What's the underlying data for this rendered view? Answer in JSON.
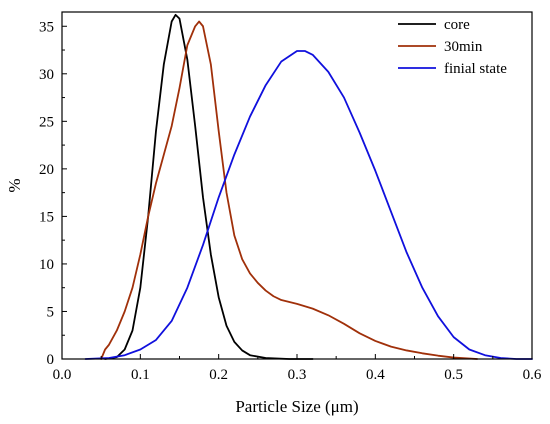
{
  "chart_data": {
    "type": "line",
    "xlabel": "Particle Size (μm)",
    "ylabel": "%",
    "xlim": [
      0.0,
      0.6
    ],
    "ylim": [
      0,
      36.5
    ],
    "x_ticks": [
      0.0,
      0.1,
      0.2,
      0.3,
      0.4,
      0.5,
      0.6
    ],
    "x_tick_labels": [
      "0.0",
      "0.1",
      "0.2",
      "0.3",
      "0.4",
      "0.5",
      "0.6"
    ],
    "y_ticks": [
      0,
      5,
      10,
      15,
      20,
      25,
      30,
      35
    ],
    "y_tick_labels": [
      "0",
      "5",
      "10",
      "15",
      "20",
      "25",
      "30",
      "35"
    ],
    "grid": false,
    "legend_position": "top-right",
    "series": [
      {
        "name": "core",
        "color": "#000000",
        "points": [
          [
            0.055,
            0.0
          ],
          [
            0.07,
            0.2
          ],
          [
            0.08,
            1.0
          ],
          [
            0.09,
            3.0
          ],
          [
            0.1,
            7.5
          ],
          [
            0.11,
            15.0
          ],
          [
            0.12,
            24.0
          ],
          [
            0.13,
            31.0
          ],
          [
            0.14,
            35.5
          ],
          [
            0.145,
            36.2
          ],
          [
            0.15,
            35.8
          ],
          [
            0.16,
            31.5
          ],
          [
            0.17,
            24.5
          ],
          [
            0.18,
            17.0
          ],
          [
            0.19,
            11.0
          ],
          [
            0.2,
            6.5
          ],
          [
            0.21,
            3.5
          ],
          [
            0.22,
            1.8
          ],
          [
            0.23,
            0.9
          ],
          [
            0.24,
            0.4
          ],
          [
            0.26,
            0.1
          ],
          [
            0.29,
            0.0
          ],
          [
            0.32,
            0.0
          ]
        ]
      },
      {
        "name": "30min",
        "color": "#a0300a",
        "points": [
          [
            0.05,
            0.0
          ],
          [
            0.055,
            1.0
          ],
          [
            0.06,
            1.5
          ],
          [
            0.07,
            3.0
          ],
          [
            0.08,
            5.0
          ],
          [
            0.09,
            7.5
          ],
          [
            0.1,
            11.0
          ],
          [
            0.11,
            15.0
          ],
          [
            0.12,
            18.5
          ],
          [
            0.13,
            21.5
          ],
          [
            0.14,
            24.5
          ],
          [
            0.15,
            28.5
          ],
          [
            0.16,
            33.0
          ],
          [
            0.17,
            35.0
          ],
          [
            0.175,
            35.5
          ],
          [
            0.18,
            35.0
          ],
          [
            0.19,
            31.0
          ],
          [
            0.2,
            24.0
          ],
          [
            0.21,
            17.5
          ],
          [
            0.22,
            13.0
          ],
          [
            0.23,
            10.5
          ],
          [
            0.24,
            9.0
          ],
          [
            0.25,
            8.0
          ],
          [
            0.26,
            7.2
          ],
          [
            0.27,
            6.6
          ],
          [
            0.28,
            6.2
          ],
          [
            0.3,
            5.8
          ],
          [
            0.32,
            5.3
          ],
          [
            0.34,
            4.6
          ],
          [
            0.36,
            3.7
          ],
          [
            0.38,
            2.7
          ],
          [
            0.4,
            1.9
          ],
          [
            0.42,
            1.3
          ],
          [
            0.44,
            0.9
          ],
          [
            0.46,
            0.6
          ],
          [
            0.48,
            0.35
          ],
          [
            0.5,
            0.15
          ],
          [
            0.52,
            0.05
          ],
          [
            0.53,
            0.0
          ]
        ]
      },
      {
        "name": "finial state",
        "color": "#1010dd",
        "points": [
          [
            0.03,
            0.0
          ],
          [
            0.06,
            0.1
          ],
          [
            0.08,
            0.4
          ],
          [
            0.1,
            1.0
          ],
          [
            0.12,
            2.0
          ],
          [
            0.14,
            4.0
          ],
          [
            0.16,
            7.5
          ],
          [
            0.18,
            12.0
          ],
          [
            0.2,
            17.0
          ],
          [
            0.22,
            21.5
          ],
          [
            0.24,
            25.5
          ],
          [
            0.26,
            28.8
          ],
          [
            0.28,
            31.3
          ],
          [
            0.3,
            32.4
          ],
          [
            0.31,
            32.4
          ],
          [
            0.32,
            32.0
          ],
          [
            0.34,
            30.2
          ],
          [
            0.36,
            27.5
          ],
          [
            0.38,
            23.8
          ],
          [
            0.4,
            19.8
          ],
          [
            0.42,
            15.5
          ],
          [
            0.44,
            11.2
          ],
          [
            0.46,
            7.5
          ],
          [
            0.48,
            4.5
          ],
          [
            0.5,
            2.3
          ],
          [
            0.52,
            1.0
          ],
          [
            0.54,
            0.4
          ],
          [
            0.56,
            0.1
          ],
          [
            0.58,
            0.0
          ],
          [
            0.6,
            0.0
          ]
        ]
      }
    ]
  }
}
